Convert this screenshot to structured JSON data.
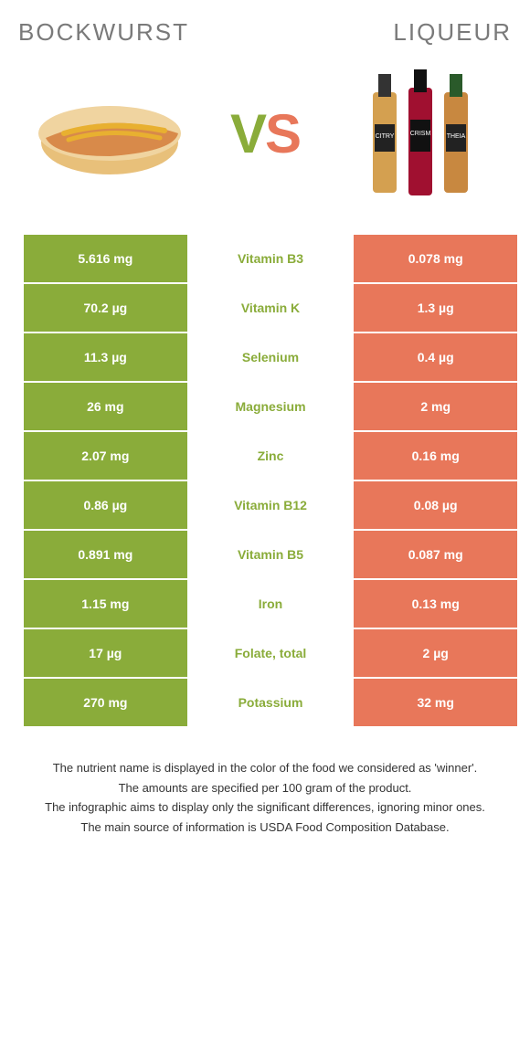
{
  "header": {
    "left": "BOCKWURST",
    "right": "LIQUEUR"
  },
  "vs": {
    "v": "V",
    "s": "S"
  },
  "colors": {
    "left_bg": "#8aac3a",
    "right_bg": "#e8775a",
    "mid_text": "#8aac3a",
    "cell_text": "#ffffff",
    "header_text": "#7a7a7a"
  },
  "rows": [
    {
      "left": "5.616 mg",
      "mid": "Vitamin B3",
      "right": "0.078 mg"
    },
    {
      "left": "70.2 µg",
      "mid": "Vitamin K",
      "right": "1.3 µg"
    },
    {
      "left": "11.3 µg",
      "mid": "Selenium",
      "right": "0.4 µg"
    },
    {
      "left": "26 mg",
      "mid": "Magnesium",
      "right": "2 mg"
    },
    {
      "left": "2.07 mg",
      "mid": "Zinc",
      "right": "0.16 mg"
    },
    {
      "left": "0.86 µg",
      "mid": "Vitamin B12",
      "right": "0.08 µg"
    },
    {
      "left": "0.891 mg",
      "mid": "Vitamin B5",
      "right": "0.087 mg"
    },
    {
      "left": "1.15 mg",
      "mid": "Iron",
      "right": "0.13 mg"
    },
    {
      "left": "17 µg",
      "mid": "Folate, total",
      "right": "2 µg"
    },
    {
      "left": "270 mg",
      "mid": "Potassium",
      "right": "32 mg"
    }
  ],
  "footer": [
    "The nutrient name is displayed in the color of the food we considered as 'winner'.",
    "The amounts are specified per 100 gram of the product.",
    "The infographic aims to display only the significant differences, ignoring minor ones.",
    "The main source of information is USDA Food Composition Database."
  ]
}
